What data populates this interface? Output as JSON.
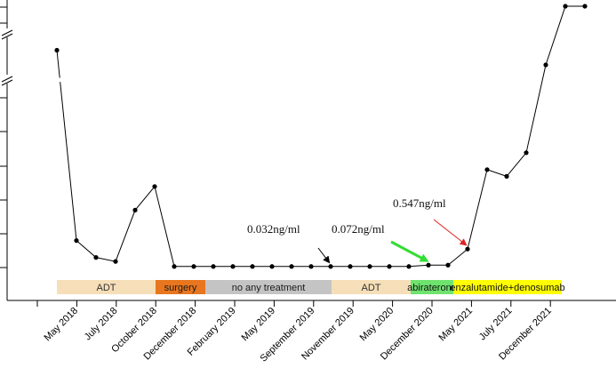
{
  "chart_data": {
    "type": "line",
    "title": "",
    "xlabel": "",
    "ylabel": "",
    "y_axis_broken": true,
    "x_tick_labels": [
      "May 2018",
      "July 2018",
      "October 2018",
      "December 2018",
      "February 2019",
      "May 2019",
      "September 2019",
      "November 2019",
      "May 2020",
      "December 2020",
      "May 2021",
      "July 2021",
      "December 2021"
    ],
    "series": [
      {
        "values": [
          6.5,
          0.8,
          0.3,
          0.18,
          1.7,
          2.4,
          0.032,
          0.032,
          0.032,
          0.032,
          0.032,
          0.032,
          0.032,
          0.032,
          0.032,
          0.032,
          0.032,
          0.032,
          0.032,
          0.072,
          0.072,
          0.547,
          2.9,
          2.7,
          3.4,
          6.0,
          8.0,
          8.0
        ]
      }
    ],
    "annotations": [
      {
        "text": "0.032ng/ml",
        "point_index": 14,
        "arrow_color": "#000000"
      },
      {
        "text": "0.072ng/ml",
        "point_index": 19,
        "arrow_color": "#33dd33"
      },
      {
        "text": "0.547ng/ml",
        "point_index": 21,
        "arrow_color": "#dd2222"
      }
    ],
    "treatment_bands": [
      {
        "label": "ADT",
        "color": "#f6dfb8",
        "text_color": "#333333"
      },
      {
        "label": "surgery",
        "color": "#e8761e",
        "text_color": "#1a1a1a"
      },
      {
        "label": "no any treatment",
        "color": "#c4c4c4",
        "text_color": "#1a1a1a"
      },
      {
        "label": "ADT",
        "color": "#f6dfb8",
        "text_color": "#333333"
      },
      {
        "label": "abiraterone",
        "color": "#6ee36e",
        "text_color": "#111111"
      },
      {
        "label": "enzalutamide+denosumab",
        "color": "#ffff00",
        "text_color": "#111111"
      }
    ]
  }
}
